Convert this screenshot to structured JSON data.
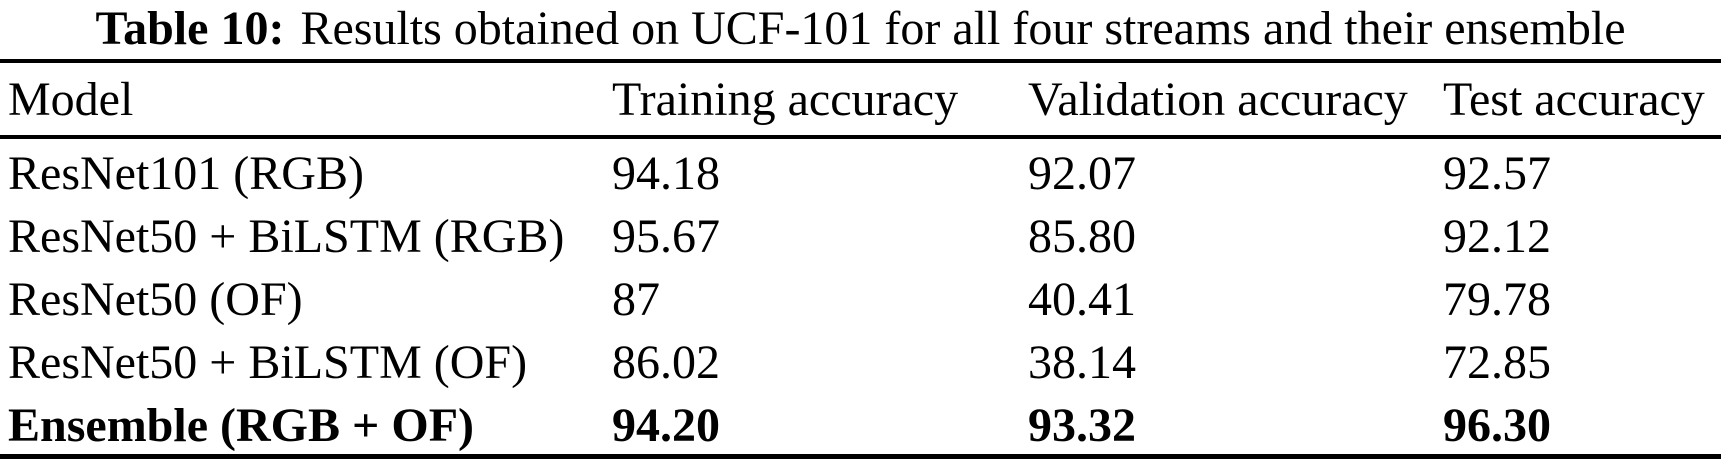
{
  "caption": {
    "label": "Table 10:",
    "text": "Results obtained on UCF-101 for all four streams and their ensemble"
  },
  "columns": [
    "Model",
    "Training accuracy",
    "Validation accuracy",
    "Test accuracy"
  ],
  "rows": [
    {
      "model": "ResNet101 (RGB)",
      "training": "94.18",
      "validation": "92.07",
      "test": "92.57"
    },
    {
      "model": "ResNet50 + BiLSTM (RGB)",
      "training": "95.67",
      "validation": "85.80",
      "test": "92.12"
    },
    {
      "model": "ResNet50 (OF)",
      "training": "87",
      "validation": "40.41",
      "test": "79.78"
    },
    {
      "model": "ResNet50 + BiLSTM (OF)",
      "training": "86.02",
      "validation": "38.14",
      "test": "72.85"
    },
    {
      "model": "Ensemble (RGB + OF)",
      "training": "94.20",
      "validation": "93.32",
      "test": "96.30"
    }
  ],
  "colors": {
    "text": "#000000",
    "background": "#ffffff",
    "rule": "#000000"
  },
  "chart_data": {
    "type": "table",
    "title": "Table 10: Results obtained on UCF-101 for all four streams and their ensemble",
    "columns": [
      "Model",
      "Training accuracy",
      "Validation accuracy",
      "Test accuracy"
    ],
    "series": [
      {
        "name": "Training accuracy",
        "categories": [
          "ResNet101 (RGB)",
          "ResNet50 + BiLSTM (RGB)",
          "ResNet50 (OF)",
          "ResNet50 + BiLSTM (OF)",
          "Ensemble (RGB + OF)"
        ],
        "values": [
          94.18,
          95.67,
          87,
          86.02,
          94.2
        ]
      },
      {
        "name": "Validation accuracy",
        "categories": [
          "ResNet101 (RGB)",
          "ResNet50 + BiLSTM (RGB)",
          "ResNet50 (OF)",
          "ResNet50 + BiLSTM (OF)",
          "Ensemble (RGB + OF)"
        ],
        "values": [
          92.07,
          85.8,
          40.41,
          38.14,
          93.32
        ]
      },
      {
        "name": "Test accuracy",
        "categories": [
          "ResNet101 (RGB)",
          "ResNet50 + BiLSTM (RGB)",
          "ResNet50 (OF)",
          "ResNet50 + BiLSTM (OF)",
          "Ensemble (RGB + OF)"
        ],
        "values": [
          92.57,
          92.12,
          79.78,
          72.85,
          96.3
        ]
      }
    ]
  }
}
